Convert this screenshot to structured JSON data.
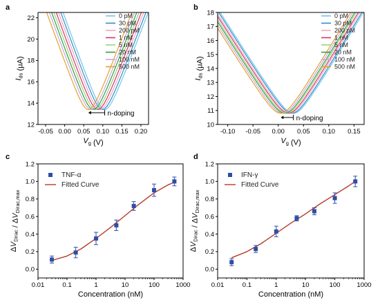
{
  "chart_data": [
    {
      "panel": "a",
      "type": "line",
      "xlabel": "V_g (V)",
      "ylabel": "I_ds (μA)",
      "xlim": [
        -0.07,
        0.22
      ],
      "ylim": [
        12,
        22.5
      ],
      "xticks": [
        "-0.05",
        "0.00",
        "0.05",
        "0.10",
        "0.15",
        "0.20"
      ],
      "xtick_values": [
        -0.05,
        0.0,
        0.05,
        0.1,
        0.15,
        0.2
      ],
      "yticks": [
        "12",
        "14",
        "16",
        "18",
        "20",
        "22"
      ],
      "ytick_values": [
        12,
        14,
        16,
        18,
        20,
        22
      ],
      "legend_position": "top-right",
      "annotation": "n-doping",
      "annotation_arrow": {
        "from": 0.105,
        "to": 0.062,
        "y": 13.1
      },
      "curve_shape": {
        "min_current": 13.4,
        "left_slope": 100,
        "right_slope": 95,
        "half_width": 0.09
      },
      "series": [
        {
          "name": "0 pM",
          "color": "#6ec6ea",
          "dirac_v": 0.105
        },
        {
          "name": "30 pM",
          "color": "#2e8ec8",
          "dirac_v": 0.099
        },
        {
          "name": "200 pM",
          "color": "#f2a7c0",
          "dirac_v": 0.093
        },
        {
          "name": "1 nM",
          "color": "#d6336c",
          "dirac_v": 0.087
        },
        {
          "name": "5 nM",
          "color": "#9ad27a",
          "dirac_v": 0.081
        },
        {
          "name": "20 nM",
          "color": "#2f9e44",
          "dirac_v": 0.075
        },
        {
          "name": "100 nM",
          "color": "#c9a7e0",
          "dirac_v": 0.069
        },
        {
          "name": "500 nM",
          "color": "#e6a02a",
          "dirac_v": 0.062
        }
      ]
    },
    {
      "panel": "b",
      "type": "line",
      "xlabel": "V_g (V)",
      "ylabel": "I_ds (μA)",
      "xlim": [
        -0.12,
        0.17
      ],
      "ylim": [
        10,
        18
      ],
      "xticks": [
        "-0.10",
        "-0.05",
        "0.00",
        "0.05",
        "0.10",
        "0.15"
      ],
      "xtick_values": [
        -0.1,
        -0.05,
        0.0,
        0.05,
        0.1,
        0.15
      ],
      "yticks": [
        "10",
        "11",
        "12",
        "13",
        "14",
        "15",
        "16",
        "17",
        "18"
      ],
      "ytick_values": [
        10,
        11,
        12,
        13,
        14,
        15,
        16,
        17,
        18
      ],
      "legend_position": "top-right",
      "annotation": "n-doping",
      "annotation_arrow": {
        "from": 0.03,
        "to": 0.005,
        "y": 10.5
      },
      "curve_shape": {
        "min_current": 10.8,
        "left_slope": 57,
        "right_slope": 60,
        "half_width": 0.1
      },
      "series": [
        {
          "name": "0 pM",
          "color": "#6ec6ea",
          "dirac_v": 0.03
        },
        {
          "name": "30 pM",
          "color": "#2e8ec8",
          "dirac_v": 0.027
        },
        {
          "name": "200 pM",
          "color": "#f2a7c0",
          "dirac_v": 0.023
        },
        {
          "name": "1 nM",
          "color": "#d6336c",
          "dirac_v": 0.02
        },
        {
          "name": "5 nM",
          "color": "#9ad27a",
          "dirac_v": 0.016
        },
        {
          "name": "20 nM",
          "color": "#2f9e44",
          "dirac_v": 0.013
        },
        {
          "name": "100 nM",
          "color": "#c9a7e0",
          "dirac_v": 0.009
        },
        {
          "name": "500 nM",
          "color": "#e6a02a",
          "dirac_v": 0.005
        }
      ]
    },
    {
      "panel": "c",
      "type": "scatter",
      "xlabel": "Concentration (nM)",
      "ylabel": "ΔV_Dirac / ΔV_Dirac,max",
      "xscale": "log",
      "xlim": [
        0.01,
        1000
      ],
      "ylim": [
        -0.1,
        1.2
      ],
      "xticks": [
        "0.01",
        "0.1",
        "1",
        "10",
        "100",
        "1000"
      ],
      "xtick_values": [
        0.01,
        0.1,
        1,
        10,
        100,
        1000
      ],
      "yticks": [
        "0.0",
        "0.2",
        "0.4",
        "0.6",
        "0.8",
        "1.0",
        "1.2"
      ],
      "ytick_values": [
        0.0,
        0.2,
        0.4,
        0.6,
        0.8,
        1.0,
        1.2
      ],
      "legend_position": "top-left",
      "series": [
        {
          "name": "TNF-α",
          "color": "#2f4ea3",
          "x": [
            0.03,
            0.2,
            1,
            5,
            20,
            100,
            500
          ],
          "y": [
            0.11,
            0.19,
            0.35,
            0.5,
            0.72,
            0.9,
            1.0
          ],
          "err": [
            0.04,
            0.06,
            0.07,
            0.06,
            0.05,
            0.07,
            0.05
          ]
        },
        {
          "name": "Fitted Curve",
          "color": "#b53a2a",
          "fit": "sigmoid",
          "x": [
            0.03,
            0.1,
            0.3,
            1,
            3,
            10,
            30,
            100,
            300,
            500
          ],
          "y": [
            0.1,
            0.15,
            0.23,
            0.35,
            0.47,
            0.61,
            0.74,
            0.87,
            0.96,
            0.99
          ]
        }
      ]
    },
    {
      "panel": "d",
      "type": "scatter",
      "xlabel": "Concentration (nM)",
      "ylabel": "ΔV_Dirac / ΔV_Dirac,max",
      "xscale": "log",
      "xlim": [
        0.01,
        1000
      ],
      "ylim": [
        -0.1,
        1.2
      ],
      "xticks": [
        "0.01",
        "0.1",
        "1",
        "10",
        "100",
        "1000"
      ],
      "xtick_values": [
        0.01,
        0.1,
        1,
        10,
        100,
        1000
      ],
      "yticks": [
        "0.0",
        "0.2",
        "0.4",
        "0.6",
        "0.8",
        "1.0",
        "1.2"
      ],
      "ytick_values": [
        0.0,
        0.2,
        0.4,
        0.6,
        0.8,
        1.0,
        1.2
      ],
      "legend_position": "top-left",
      "series": [
        {
          "name": "IFN-γ",
          "color": "#2f4ea3",
          "x": [
            0.03,
            0.2,
            1,
            5,
            20,
            100,
            500
          ],
          "y": [
            0.08,
            0.23,
            0.43,
            0.58,
            0.66,
            0.81,
            1.0
          ],
          "err": [
            0.04,
            0.04,
            0.06,
            0.03,
            0.04,
            0.06,
            0.06
          ]
        },
        {
          "name": "Fitted Curve",
          "color": "#b53a2a",
          "fit": "sigmoid",
          "x": [
            0.03,
            0.1,
            0.3,
            1,
            3,
            10,
            30,
            100,
            300,
            500
          ],
          "y": [
            0.13,
            0.2,
            0.29,
            0.41,
            0.52,
            0.63,
            0.74,
            0.85,
            0.95,
            1.0
          ]
        }
      ]
    }
  ]
}
